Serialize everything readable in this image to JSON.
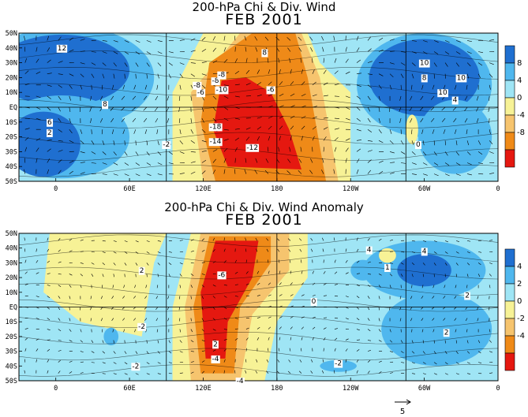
{
  "chart_data": [
    {
      "type": "heatmap",
      "title": "200-hPa Chi & Div. Wind",
      "subtitle": "FEB 2001",
      "x_tick_labels": [
        "0",
        "60E",
        "120E",
        "180",
        "120W",
        "60W",
        "0"
      ],
      "y_tick_labels": [
        "50N",
        "40N",
        "30N",
        "20N",
        "10N",
        "EQ",
        "10S",
        "20S",
        "30S",
        "40S",
        "50S"
      ],
      "colorbar": {
        "levels": [
          8,
          4,
          0,
          -4,
          -8
        ],
        "colors": [
          "#1f6fd0",
          "#4fb7ee",
          "#9fe5f5",
          "#f7f296",
          "#f6c46e",
          "#ef8a18",
          "#e51810"
        ]
      },
      "contour_labels": [
        "12",
        "10",
        "8",
        "10",
        "10",
        "8",
        "4",
        "8",
        "6",
        "2",
        "-8",
        "-8",
        "-10",
        "-6",
        "-18",
        "-14",
        "-12",
        "-2",
        "-8",
        "-6",
        "0"
      ]
    },
    {
      "type": "heatmap",
      "title": "200-hPa Chi & Div. Wind Anomaly",
      "subtitle": "FEB 2001",
      "x_tick_labels": [
        "0",
        "60E",
        "120E",
        "180",
        "120W",
        "60W",
        "0"
      ],
      "y_tick_labels": [
        "50N",
        "40N",
        "30N",
        "20N",
        "10N",
        "EQ",
        "10S",
        "20S",
        "30S",
        "40S",
        "50S"
      ],
      "colorbar": {
        "levels": [
          4,
          2,
          0,
          -2,
          -4
        ],
        "colors": [
          "#1f6fd0",
          "#4fb7ee",
          "#9fe5f5",
          "#f7f296",
          "#f6c46e",
          "#ef8a18",
          "#e51810"
        ]
      },
      "contour_labels": [
        "-6",
        "-4",
        "-2",
        "4",
        "4",
        "2",
        "2",
        "2",
        "1",
        "-2",
        "-2",
        "0",
        "2",
        "-4"
      ],
      "reference_vector": "5"
    }
  ]
}
